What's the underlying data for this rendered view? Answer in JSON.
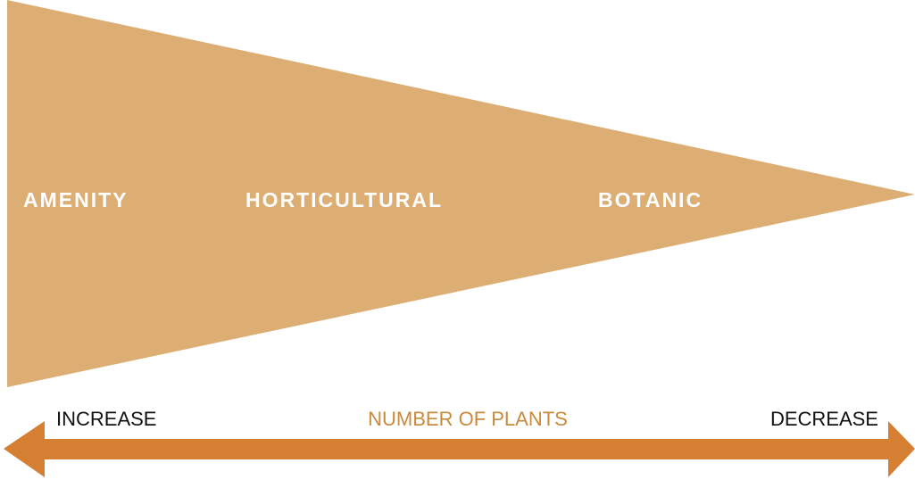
{
  "segments": [
    "AMENITY",
    "HORTICULTURAL",
    "BOTANIC"
  ],
  "axis": {
    "left": "INCREASE",
    "middle": "NUMBER OF PLANTS",
    "right": "DECREASE"
  }
}
